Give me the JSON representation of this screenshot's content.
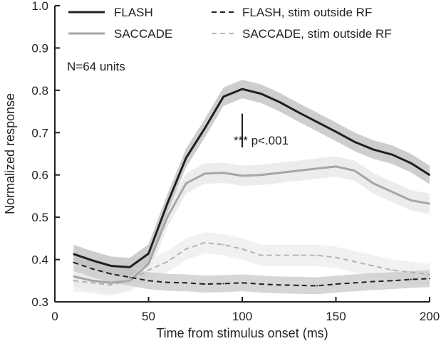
{
  "chart_data": {
    "type": "line",
    "title": "",
    "xlabel": "Time from stimulus onset (ms)",
    "ylabel": "Normalized response",
    "xlim": [
      0,
      200
    ],
    "ylim": [
      0.3,
      1.0
    ],
    "xticks": [
      0,
      50,
      100,
      150,
      200
    ],
    "xtick_labels": [
      "0",
      "50",
      "100",
      "150",
      "200"
    ],
    "yticks": [
      0.3,
      0.4,
      0.5,
      0.6,
      0.7,
      0.8,
      0.9,
      1.0
    ],
    "ytick_labels": [
      "0.3",
      "0.4",
      "0.5",
      "0.6",
      "0.7",
      "0.8",
      "0.9",
      "1.0"
    ],
    "grid": false,
    "legend_position": "top",
    "annotations": {
      "n_units": "N=64 units",
      "significance": "*** p<.001",
      "significance_time": 100,
      "significance_range": [
        0.665,
        0.745
      ]
    },
    "series": [
      {
        "name": "FLASH",
        "color": "#231f20",
        "band_color": "#bdbdbd",
        "dashed": false,
        "x": [
          10,
          20,
          30,
          40,
          50,
          60,
          70,
          80,
          90,
          100,
          110,
          120,
          130,
          140,
          150,
          160,
          170,
          180,
          190,
          200
        ],
        "values": [
          0.413,
          0.398,
          0.385,
          0.382,
          0.414,
          0.532,
          0.64,
          0.71,
          0.785,
          0.803,
          0.792,
          0.772,
          0.748,
          0.725,
          0.702,
          0.678,
          0.66,
          0.648,
          0.628,
          0.6
        ],
        "err": 0.022
      },
      {
        "name": "SACCADE",
        "color": "#a6a6a6",
        "band_color": "#e6e6e6",
        "dashed": false,
        "x": [
          10,
          20,
          30,
          40,
          50,
          60,
          70,
          80,
          90,
          100,
          110,
          120,
          130,
          140,
          150,
          160,
          170,
          180,
          190,
          200
        ],
        "values": [
          0.36,
          0.35,
          0.345,
          0.35,
          0.39,
          0.5,
          0.58,
          0.603,
          0.605,
          0.598,
          0.6,
          0.605,
          0.61,
          0.615,
          0.62,
          0.61,
          0.58,
          0.56,
          0.54,
          0.532
        ],
        "err": 0.024
      },
      {
        "name": "FLASH, stim outside RF",
        "color": "#231f20",
        "band_color": "#c8c8c8",
        "dashed": true,
        "x": [
          10,
          20,
          30,
          40,
          50,
          60,
          70,
          80,
          90,
          100,
          110,
          120,
          130,
          140,
          150,
          160,
          170,
          180,
          190,
          200
        ],
        "values": [
          0.393,
          0.378,
          0.366,
          0.358,
          0.35,
          0.346,
          0.345,
          0.342,
          0.343,
          0.345,
          0.342,
          0.34,
          0.339,
          0.338,
          0.342,
          0.345,
          0.348,
          0.35,
          0.353,
          0.355
        ],
        "err": 0.02
      },
      {
        "name": "SACCADE, stim outside RF",
        "color": "#b3b3b3",
        "band_color": "#ececec",
        "dashed": true,
        "x": [
          10,
          20,
          30,
          40,
          50,
          60,
          70,
          80,
          90,
          100,
          110,
          120,
          130,
          140,
          150,
          160,
          170,
          180,
          190,
          200
        ],
        "values": [
          0.35,
          0.345,
          0.34,
          0.35,
          0.375,
          0.395,
          0.425,
          0.44,
          0.435,
          0.425,
          0.41,
          0.41,
          0.41,
          0.41,
          0.405,
          0.395,
          0.385,
          0.375,
          0.37,
          0.365
        ],
        "err": 0.025
      }
    ]
  }
}
